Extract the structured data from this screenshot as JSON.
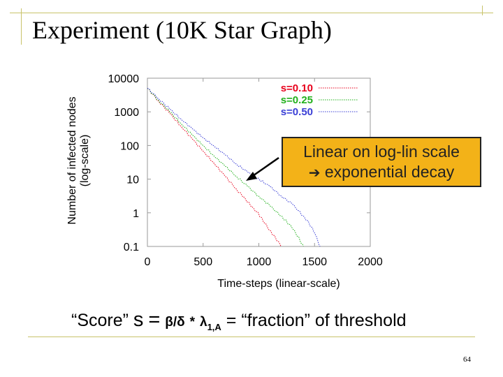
{
  "slide": {
    "title": "Experiment (10K Star Graph)",
    "page_number": "64",
    "frame_color": "#c8c36a"
  },
  "callout": {
    "line1": "Linear on log-lin scale",
    "arrow_icon": "➔",
    "line2": "exponential decay",
    "background": "#f3b218"
  },
  "score_formula": {
    "quote_score": "“Score”",
    "s": "s",
    "eq1": "=",
    "beta_over_delta": "β/δ",
    "times": "*",
    "lambda": "λ",
    "lambda_sub": "1,A",
    "eq2": "=",
    "tail": "“fraction” of threshold"
  },
  "chart_data": {
    "type": "line",
    "title": "",
    "xlabel": "Time-steps (linear-scale)",
    "ylabel_line1": "Number of infected nodes",
    "ylabel_line2": "(log-scale)",
    "x_scale": "linear",
    "y_scale": "log",
    "xlim": [
      0,
      2000
    ],
    "ylim": [
      0.1,
      10000
    ],
    "x_ticks": [
      0,
      500,
      1000,
      1500,
      2000
    ],
    "y_ticks": [
      0.1,
      1,
      10,
      100,
      1000,
      10000
    ],
    "y_tick_labels": [
      "0.1",
      "1",
      "10",
      "100",
      "1000",
      "10000"
    ],
    "grid": false,
    "legend_position": "top-right",
    "series": [
      {
        "name": "s=0.10",
        "color": "#e8001c",
        "x": [
          0,
          100,
          200,
          300,
          400,
          500,
          600,
          700,
          800,
          850,
          900,
          950,
          1000,
          1050,
          1100,
          1150,
          1200
        ],
        "y": [
          5000,
          2100,
          900,
          380,
          160,
          68,
          29,
          12,
          5,
          3.2,
          2.1,
          1.4,
          0.9,
          0.5,
          0.3,
          0.18,
          0.1
        ]
      },
      {
        "name": "s=0.25",
        "color": "#22b01c",
        "x": [
          0,
          100,
          200,
          300,
          400,
          500,
          600,
          700,
          800,
          900,
          1000,
          1100,
          1200,
          1250,
          1300,
          1350,
          1400
        ],
        "y": [
          5000,
          2200,
          1000,
          460,
          210,
          100,
          48,
          24,
          12,
          6,
          3.1,
          1.6,
          0.8,
          0.55,
          0.35,
          0.2,
          0.1
        ]
      },
      {
        "name": "s=0.50",
        "color": "#3a3fd6",
        "x": [
          0,
          100,
          200,
          300,
          400,
          500,
          600,
          700,
          800,
          900,
          950,
          1000,
          1100,
          1200,
          1300,
          1400,
          1450,
          1500,
          1550
        ],
        "y": [
          5000,
          2500,
          1200,
          620,
          320,
          170,
          95,
          52,
          28,
          16,
          12,
          10,
          6,
          3.2,
          1.8,
          0.8,
          0.5,
          0.25,
          0.1
        ]
      }
    ]
  }
}
